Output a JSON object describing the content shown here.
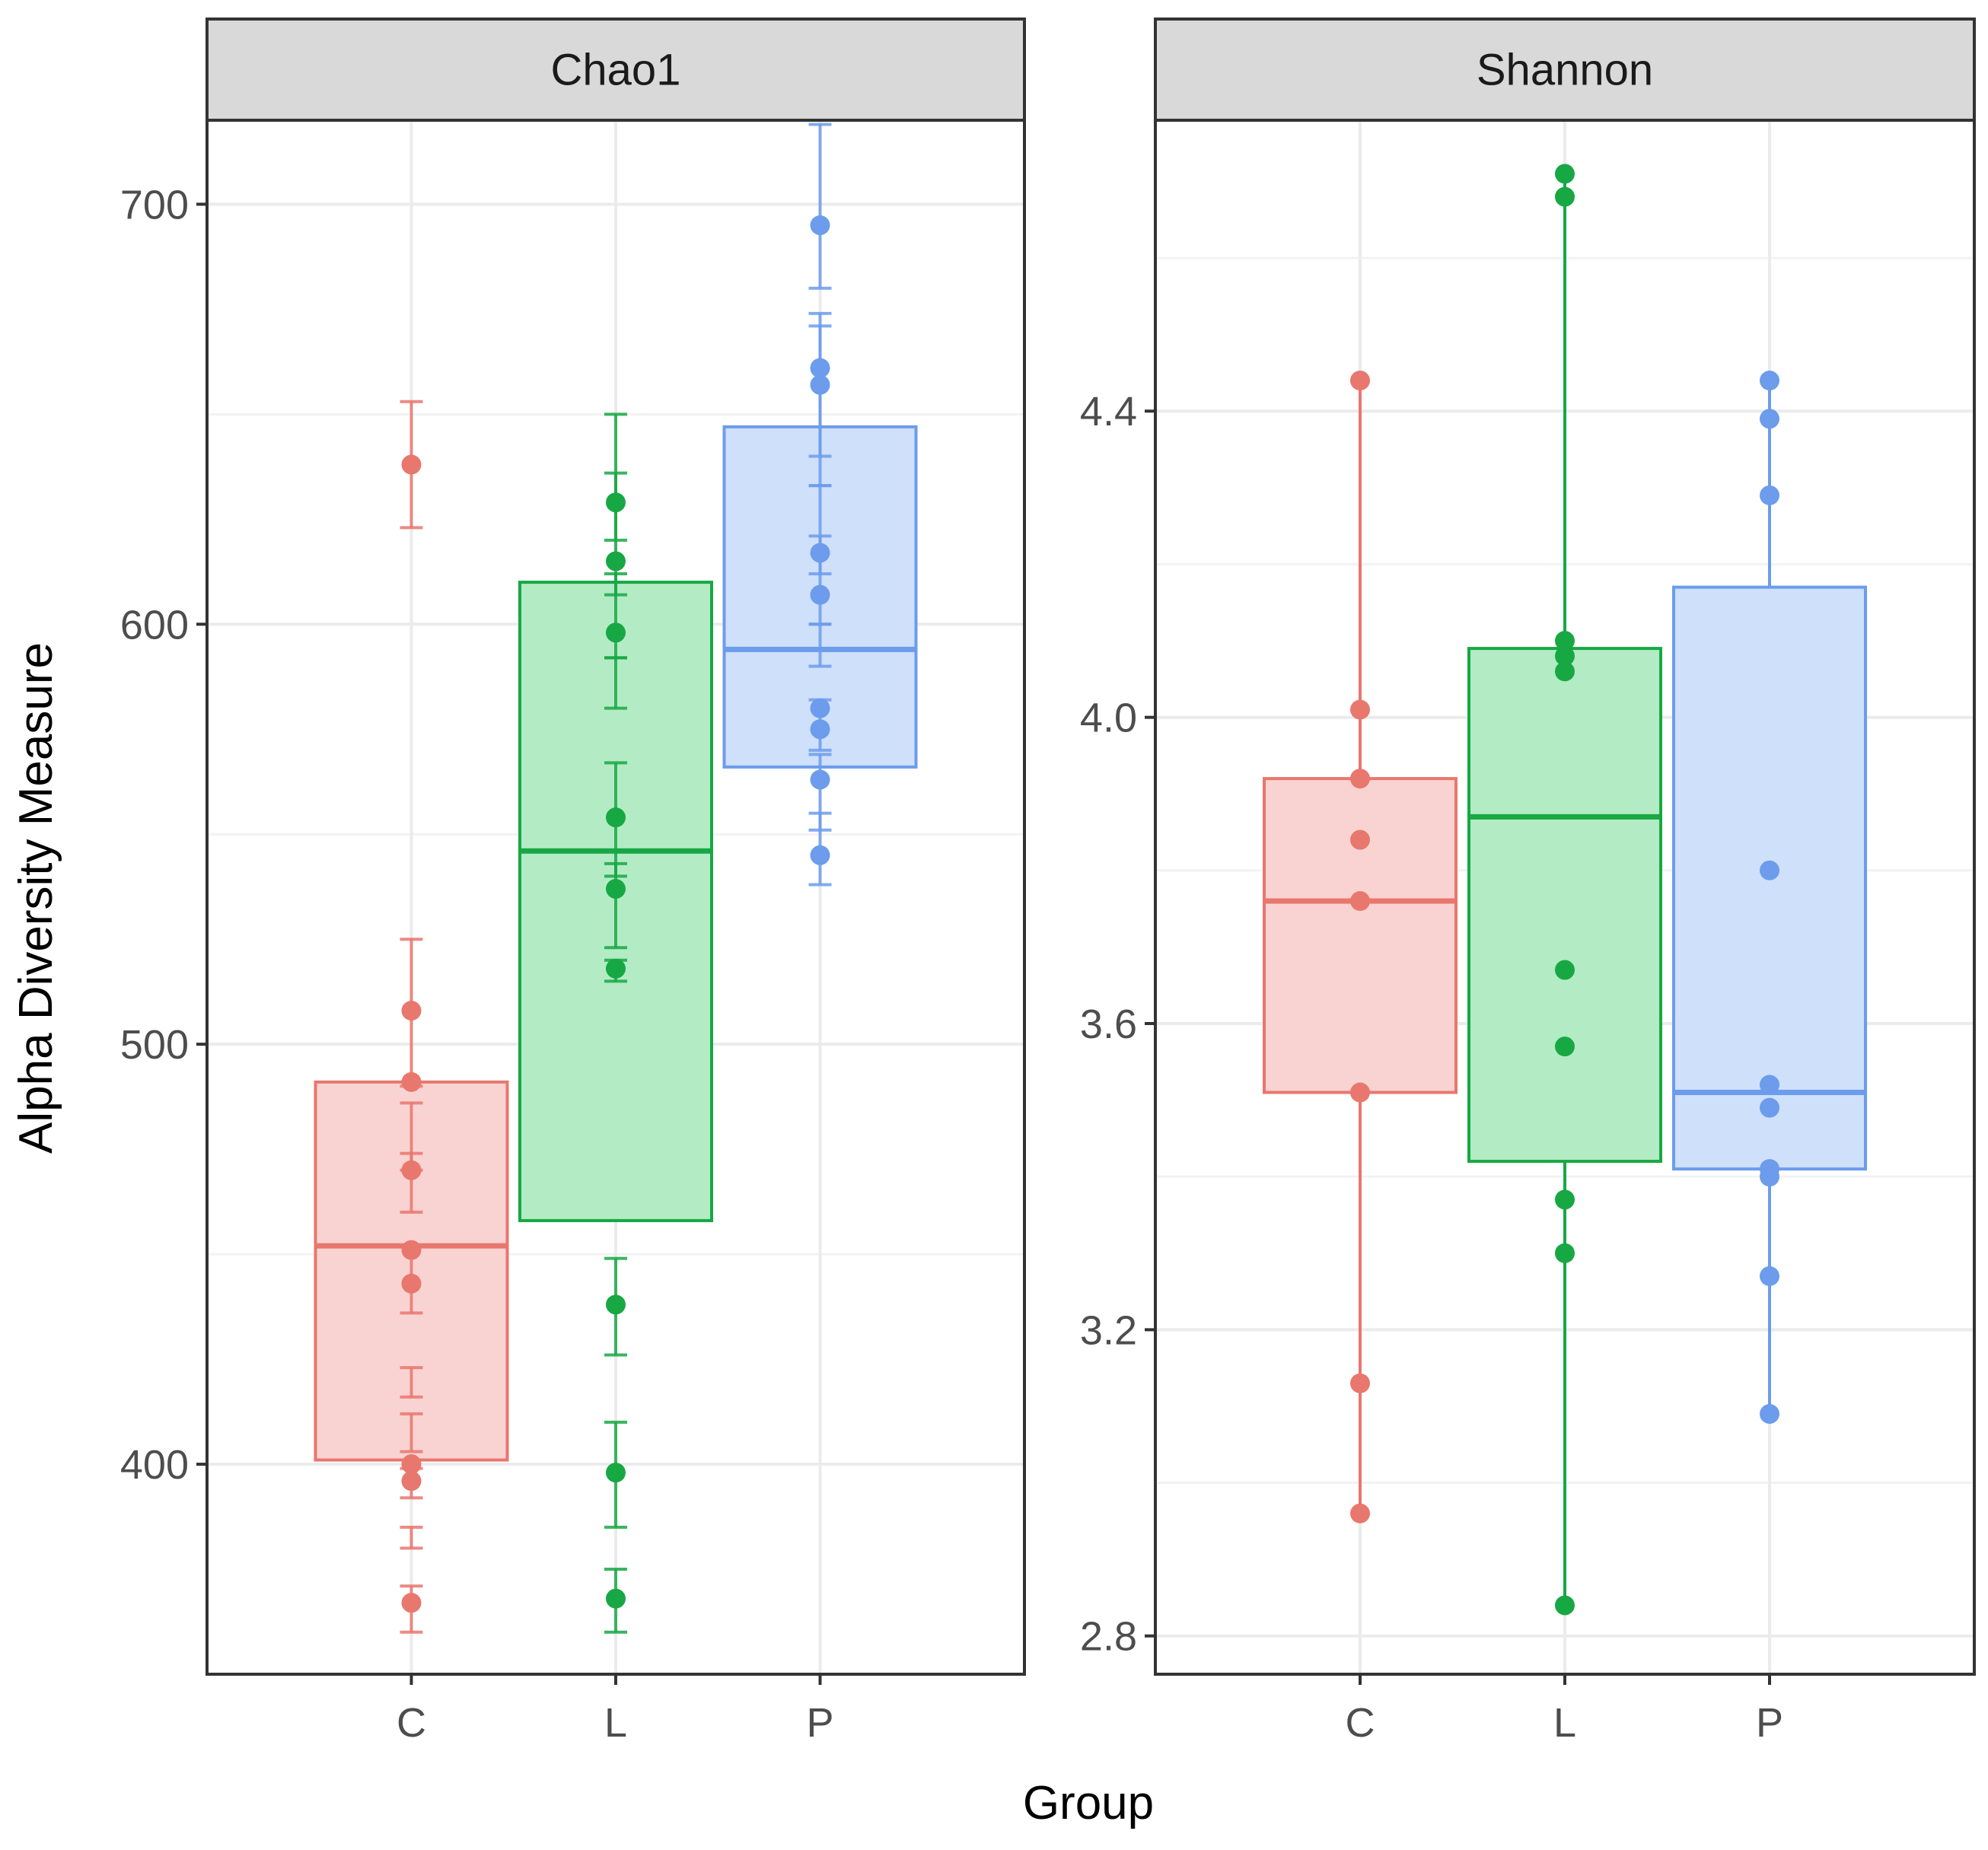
{
  "chart_data": {
    "type": "box",
    "xlabel": "Group",
    "ylabel": "Alpha Diversity Measure",
    "categories": [
      "C",
      "L",
      "P"
    ],
    "colors": {
      "C": "#E8776E",
      "L": "#17A844",
      "P": "#6C9CEB"
    },
    "fills": {
      "C": "#F9D3D1",
      "L": "#B3EBC4",
      "P": "#CFE0FB"
    },
    "panels": [
      {
        "title": "Chao1",
        "ylim": [
          350,
          720
        ],
        "yticks": [
          400,
          500,
          600,
          700
        ],
        "boxes": [
          {
            "group": "C",
            "q1": 401,
            "median": 452,
            "q3": 491
          },
          {
            "group": "L",
            "q1": 458,
            "median": 546,
            "q3": 610
          },
          {
            "group": "P",
            "q1": 566,
            "median": 594,
            "q3": 647
          }
        ],
        "points": {
          "C": [
            638,
            508,
            491,
            470,
            451,
            443,
            400,
            396,
            367
          ],
          "L": [
            629,
            615,
            598,
            554,
            537,
            518,
            438,
            398,
            368
          ],
          "P": [
            695,
            661,
            657,
            617,
            607,
            580,
            575,
            563,
            545
          ]
        },
        "errorbars": {
          "C": [
            [
              623,
              653
            ],
            [
              490,
              525
            ],
            [
              470,
              486
            ],
            [
              460,
              474
            ],
            [
              436,
              452
            ],
            [
              416,
              423
            ],
            [
              403,
              412
            ],
            [
              392,
              399
            ],
            [
              380,
              385
            ],
            [
              360,
              371
            ]
          ],
          "L": [
            [
              620,
              650
            ],
            [
              607,
              636
            ],
            [
              592,
              612
            ],
            [
              580,
              592
            ],
            [
              540,
              567
            ],
            [
              523,
              543
            ],
            [
              515,
              520
            ],
            [
              426,
              449
            ],
            [
              385,
              410
            ],
            [
              360,
              375
            ]
          ],
          "P": [
            [
              680,
              719
            ],
            [
              640,
              674
            ],
            [
              633,
              671
            ],
            [
              612,
              633
            ],
            [
              600,
              621
            ],
            [
              590,
              600
            ],
            [
              570,
              582
            ],
            [
              551,
              569
            ],
            [
              538,
              555
            ]
          ]
        }
      },
      {
        "title": "Shannon",
        "ylim": [
          2.75,
          4.78
        ],
        "yticks": [
          2.8,
          3.2,
          3.6,
          4.0,
          4.4
        ],
        "boxes": [
          {
            "group": "C",
            "q1": 3.51,
            "median": 3.76,
            "q3": 3.92
          },
          {
            "group": "L",
            "q1": 3.42,
            "median": 3.87,
            "q3": 4.09
          },
          {
            "group": "P",
            "q1": 3.41,
            "median": 3.51,
            "q3": 4.17
          }
        ],
        "whiskers": {
          "C": [
            2.96,
            4.44
          ],
          "L": [
            2.84,
            4.71
          ],
          "P": [
            3.09,
            4.44
          ]
        },
        "points": {
          "C": [
            4.44,
            4.01,
            3.92,
            3.84,
            3.76,
            3.51,
            3.13,
            2.96
          ],
          "L": [
            4.71,
            4.68,
            4.1,
            4.08,
            4.06,
            3.67,
            3.57,
            3.37,
            3.3,
            2.84
          ],
          "P": [
            4.44,
            4.39,
            4.29,
            3.8,
            3.52,
            3.49,
            3.41,
            3.4,
            3.27,
            3.09
          ]
        }
      }
    ]
  }
}
